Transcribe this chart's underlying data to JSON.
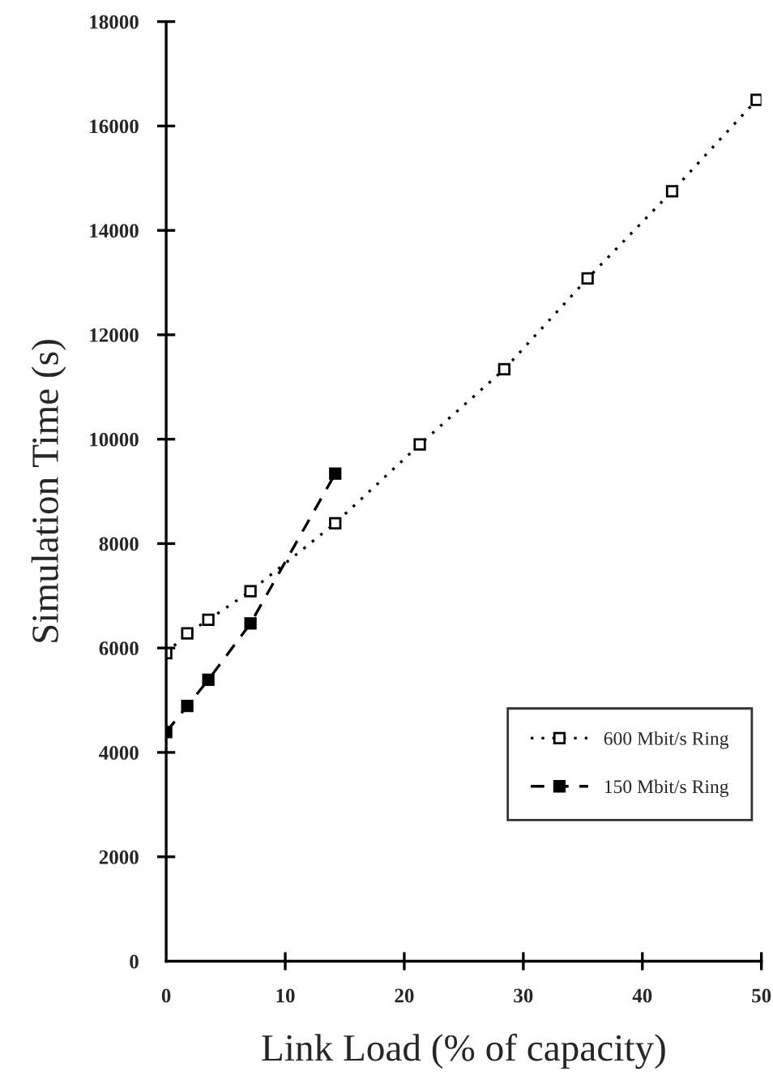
{
  "chart_data": {
    "type": "line",
    "xlabel": "Link Load (% of capacity)",
    "ylabel": "Simulation Time (s)",
    "xlim": [
      0,
      50
    ],
    "xticks": [
      0,
      10,
      20,
      30,
      40,
      50
    ],
    "ylim": [
      0,
      18000
    ],
    "yticks": [
      0,
      2000,
      4000,
      6000,
      8000,
      10000,
      12000,
      14000,
      16000,
      18000
    ],
    "grid": false,
    "legend": "lower right",
    "series": [
      {
        "name": "600 Mbit/s Ring",
        "color": "#000000",
        "marker": "square",
        "line_style": "dotted",
        "x": [
          0,
          1.77,
          3.54,
          7.08,
          14.2,
          21.3,
          28.4,
          35.4,
          42.5,
          49.6
        ],
        "values": [
          5900,
          6280,
          6540,
          7090,
          8390,
          9900,
          11340,
          13080,
          14750,
          16500
        ]
      },
      {
        "name": "150 Mbit/s Ring",
        "color": "#000000",
        "marker": "square",
        "line_style": "dashed",
        "x": [
          0,
          1.77,
          3.54,
          7.08,
          14.2
        ],
        "values": [
          4390,
          4890,
          5390,
          6470,
          9340
        ]
      }
    ]
  }
}
